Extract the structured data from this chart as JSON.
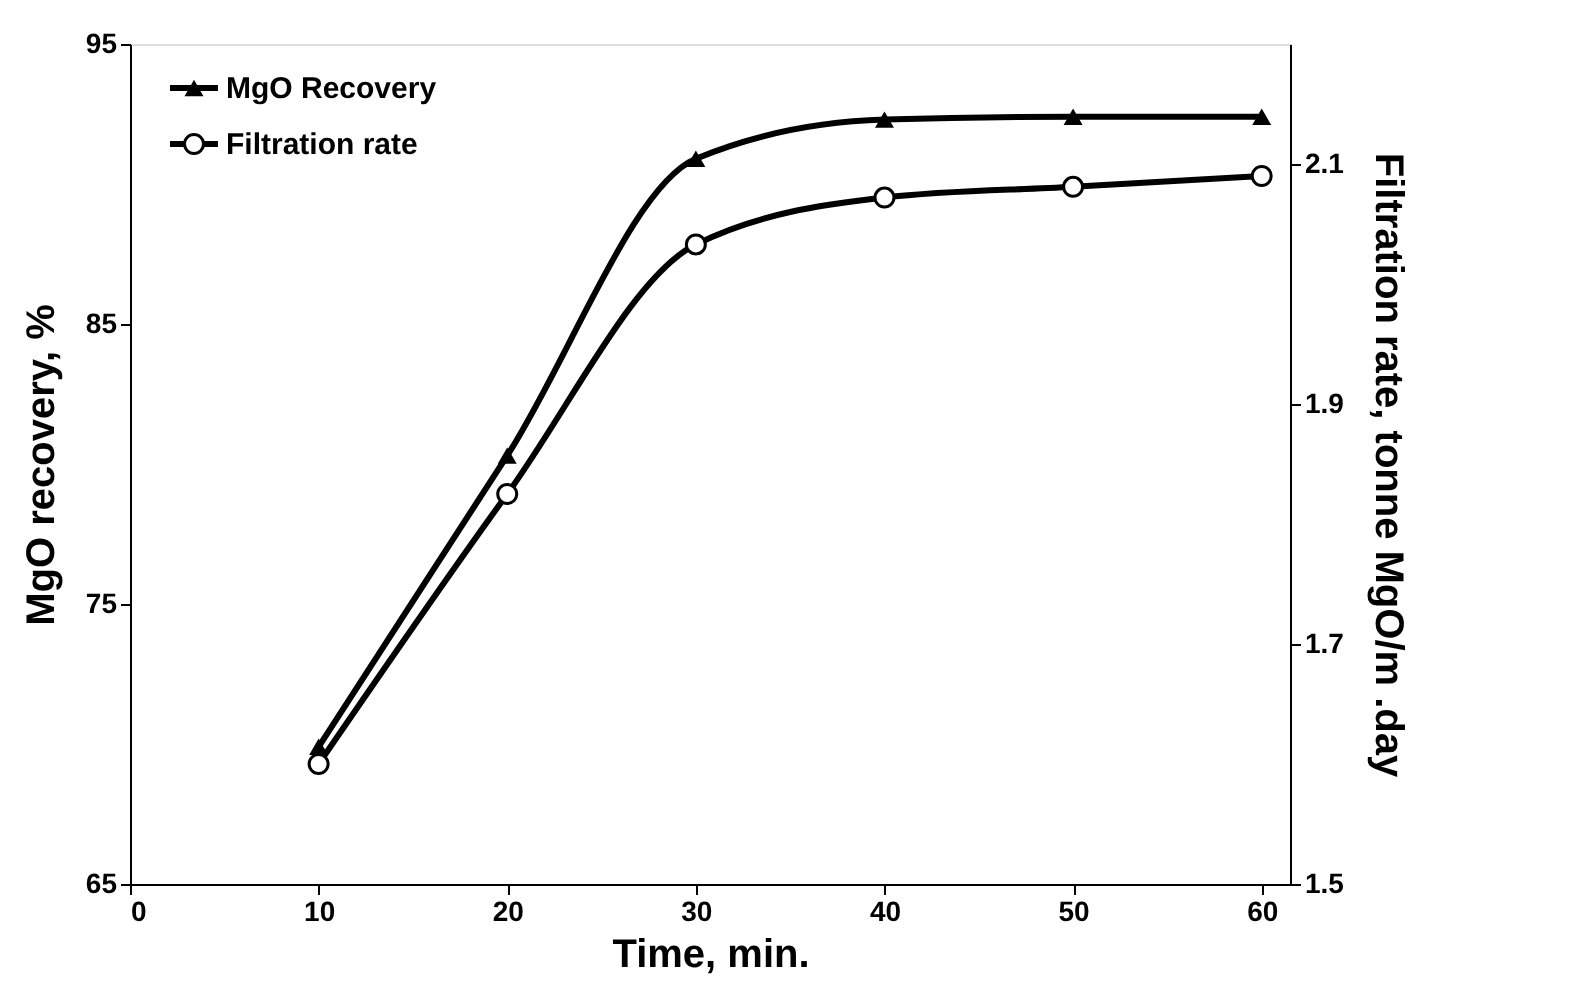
{
  "chart_data": {
    "type": "line",
    "xlabel": "Time, min.",
    "ylabel": "MgO recovery, %",
    "y2label": "Filtration rate, tonne MgO/m .day",
    "x": [
      10,
      20,
      30,
      40,
      50,
      60
    ],
    "series": [
      {
        "name": "MgO Recovery",
        "color": "#000000",
        "marker": "triangle",
        "values": [
          69.9,
          80.3,
          90.9,
          92.3,
          92.4,
          92.4
        ]
      },
      {
        "name": "Filtration rate",
        "color": "#000000",
        "marker": "circle",
        "axis": "y2",
        "values": [
          1.6,
          1.825,
          2.033,
          2.072,
          2.081,
          2.09
        ]
      }
    ],
    "xlim": [
      0,
      61.5
    ],
    "xticks": [
      0,
      10,
      20,
      30,
      40,
      50,
      60
    ],
    "ylim": [
      65,
      95
    ],
    "yticks": [
      65,
      75,
      85,
      95
    ],
    "y2lim": [
      1.5,
      2.2
    ],
    "y2ticks": [
      1.5,
      1.7,
      1.9,
      2.1
    ],
    "grid": false,
    "legend": "top left",
    "line_style": "solid"
  }
}
